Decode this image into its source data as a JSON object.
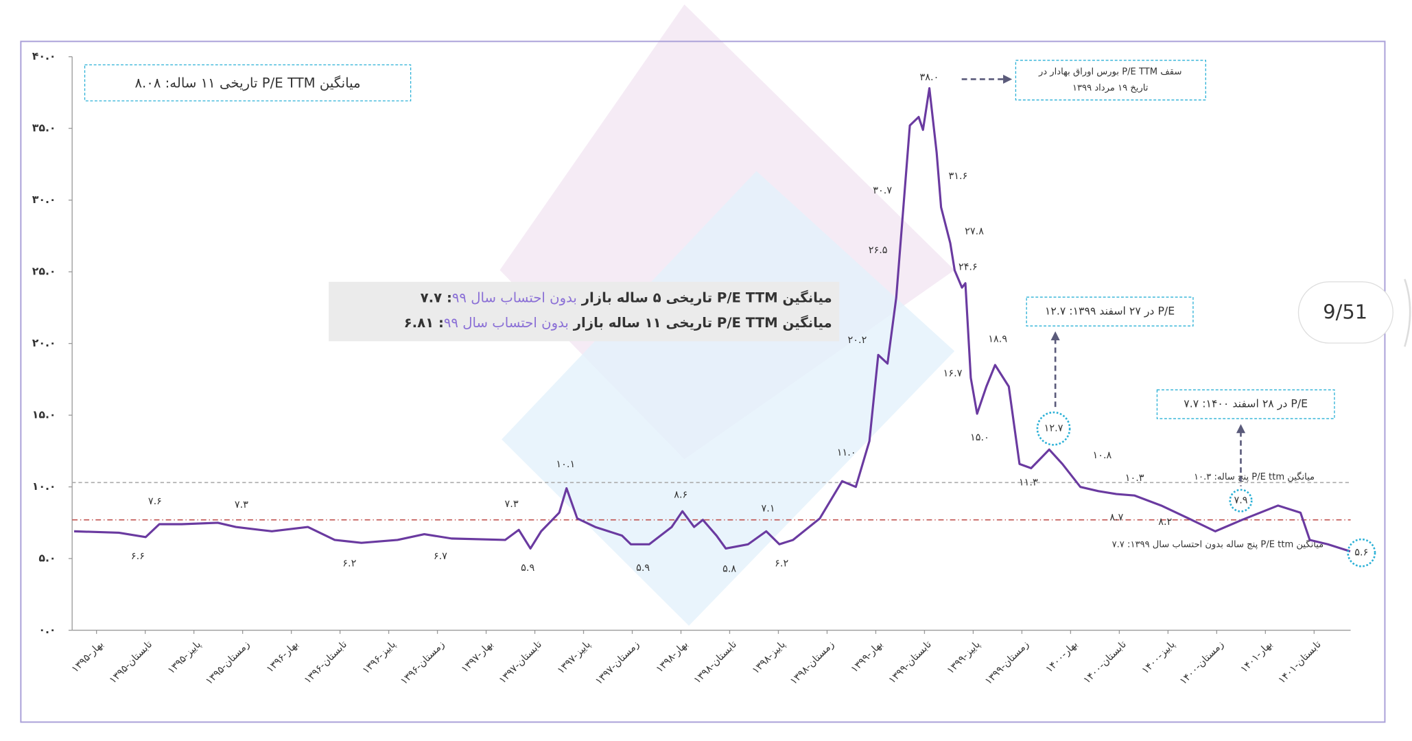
{
  "chart_data": {
    "type": "line",
    "x": [
      -0.46,
      0.46,
      1.01,
      1.29,
      1.75,
      2.49,
      2.86,
      3.6,
      4.34,
      4.89,
      5.44,
      6.18,
      6.73,
      7.29,
      8.39,
      8.67,
      8.91,
      9.13,
      9.5,
      9.65,
      9.87,
      10.24,
      10.79,
      10.97,
      11.35,
      11.81,
      12.03,
      12.27,
      12.45,
      12.73,
      12.92,
      13.38,
      13.75,
      14.02,
      14.3,
      14.85,
      15.31,
      15.59,
      15.87,
      16.05,
      16.24,
      16.42,
      16.7,
      16.88,
      16.97,
      17.1,
      17.25,
      17.34,
      17.53,
      17.62,
      17.77,
      17.84,
      17.95,
      18.08,
      18.27,
      18.45,
      18.73,
      18.95,
      19.19,
      19.56,
      19.83,
      20.2,
      20.57,
      20.94,
      21.31,
      21.86,
      22.42,
      22.97,
      23.52,
      24.26,
      24.72,
      24.91,
      25.28,
      25.74
    ],
    "values": [
      6.9,
      6.8,
      6.5,
      7.4,
      7.4,
      7.5,
      7.2,
      6.9,
      7.2,
      6.3,
      6.1,
      6.3,
      6.7,
      6.4,
      6.3,
      7.0,
      5.7,
      6.9,
      8.2,
      9.9,
      7.8,
      7.2,
      6.6,
      6.0,
      6.0,
      7.2,
      8.3,
      7.2,
      7.7,
      6.6,
      5.7,
      6.0,
      6.9,
      6.0,
      6.3,
      7.8,
      10.4,
      10.0,
      13.2,
      19.2,
      18.6,
      23.2,
      35.2,
      35.8,
      34.9,
      37.8,
      33.3,
      29.5,
      27.0,
      25.1,
      23.9,
      24.2,
      17.6,
      15.1,
      17.0,
      18.5,
      17.0,
      11.6,
      11.3,
      12.6,
      11.6,
      10.0,
      9.7,
      9.5,
      9.4,
      8.7,
      7.8,
      6.9,
      7.7,
      8.7,
      8.2,
      6.3,
      6.0,
      5.5
    ],
    "color": "#6a3aa0",
    "xlim": [
      -0.5,
      25.75
    ],
    "xticks": [
      {
        "value": 0,
        "label": "بهار-۱۳۹۵"
      },
      {
        "value": 1,
        "label": "تابستان-۱۳۹۵"
      },
      {
        "value": 2,
        "label": "پاییز-۱۳۹۵"
      },
      {
        "value": 3,
        "label": "زمستان-۱۳۹۵"
      },
      {
        "value": 4,
        "label": "بهار-۱۳۹۶"
      },
      {
        "value": 5,
        "label": "تابستان-۱۳۹۶"
      },
      {
        "value": 6,
        "label": "پاییز-۱۳۹۶"
      },
      {
        "value": 7,
        "label": "زمستان-۱۳۹۶"
      },
      {
        "value": 8,
        "label": "بهار-۱۳۹۷"
      },
      {
        "value": 9,
        "label": "تابستان-۱۳۹۷"
      },
      {
        "value": 10,
        "label": "پاییز-۱۳۹۷"
      },
      {
        "value": 11,
        "label": "زمستان-۱۳۹۷"
      },
      {
        "value": 12,
        "label": "بهار-۱۳۹۸"
      },
      {
        "value": 13,
        "label": "تابستان-۱۳۹۸"
      },
      {
        "value": 14,
        "label": "پاییز-۱۳۹۸"
      },
      {
        "value": 15,
        "label": "زمستان-۱۳۹۸"
      },
      {
        "value": 16,
        "label": "بهار-۱۳۹۹"
      },
      {
        "value": 17,
        "label": "تابستان-۱۳۹۹"
      },
      {
        "value": 18,
        "label": "پاییز-۱۳۹۹"
      },
      {
        "value": 19,
        "label": "زمستان-۱۳۹۹"
      },
      {
        "value": 20,
        "label": "بهار-۱۴۰۰"
      },
      {
        "value": 21,
        "label": "تابستان-۱۴۰۰"
      },
      {
        "value": 22,
        "label": "پاییز-۱۴۰۰"
      },
      {
        "value": 23,
        "label": "زمستان-۱۴۰۰"
      },
      {
        "value": 24,
        "label": "بهار-۱۴۰۱"
      },
      {
        "value": 25,
        "label": "تابستان-۱۴۰۱"
      }
    ],
    "ylim": [
      0,
      40
    ],
    "yticks": [
      {
        "value": 0,
        "label": "۰.۰"
      },
      {
        "value": 5,
        "label": "۵.۰"
      },
      {
        "value": 10,
        "label": "۱۰.۰"
      },
      {
        "value": 15,
        "label": "۱۵.۰"
      },
      {
        "value": 20,
        "label": "۲۰.۰"
      },
      {
        "value": 25,
        "label": "۲۵.۰"
      },
      {
        "value": 30,
        "label": "۳۰.۰"
      },
      {
        "value": 35,
        "label": "۳۵.۰"
      },
      {
        "value": 40,
        "label": "۴۰.۰"
      }
    ],
    "grid": false,
    "annotations": [
      "۷.۶",
      "۶.۶",
      "۷.۳",
      "۶.۲",
      "۶.۷",
      "۷.۳",
      "۵.۹",
      "۱۰.۱",
      "۵.۹",
      "۸.۶",
      "۵.۸",
      "۷.۱",
      "۶.۲",
      "۱۱.۰",
      "۲۰.۲",
      "۲۶.۵",
      "۳۰.۷",
      "۳۸.۰",
      "۳۱.۶",
      "۲۷.۸",
      "۲۴.۶",
      "۱۶.۷",
      "۱۸.۹",
      "۱۵.۰",
      "۱۱.۳",
      "۱۰.۸",
      "۱۰.۳",
      "۸.۷",
      "۸.۲",
      "۷.۹",
      "۱۲.۷",
      "۵.۶"
    ],
    "reference_lines": [
      {
        "value": 10.3,
        "label": "میانگین  P/E ttm پنج ساله: ۱۰.۳",
        "color": "#aaaaaa"
      },
      {
        "value": 7.7,
        "label": "میانگین P/E ttm پنج ساله بدون احتساب سال ۱۳۹۹: ۷.۷",
        "color": "#c0504d"
      }
    ],
    "average_box": "میانگین P/E TTM  تاریخی ۱۱ ساله: ۸.۰۸",
    "market_box": [
      {
        "prefix": "میانگین P/E TTM تاریخی ۵ ساله بازار ",
        "highlight": "بدون احتساب سال ۹۹",
        "suffix": ": ۷.۷"
      },
      {
        "prefix": "میانگین  P/E TTM  تاریخی ۱۱ ساله بازار ",
        "highlight": "بدون احتساب سال ۹۹",
        "suffix": ": ۶.۸۱"
      }
    ],
    "peak_box": [
      "سقف  P/E TTM بورس اوراق بهادار در",
      "تاریخ ۱۹ مرداد ۱۳۹۹"
    ],
    "callouts": [
      "P/E در ۲۷ اسفند ۱۳۹۹: ۱۲.۷",
      "P/E در ۲۸ اسفند ۱۴۰۰: ۷.۷"
    ]
  },
  "page_indicator": "9/51"
}
